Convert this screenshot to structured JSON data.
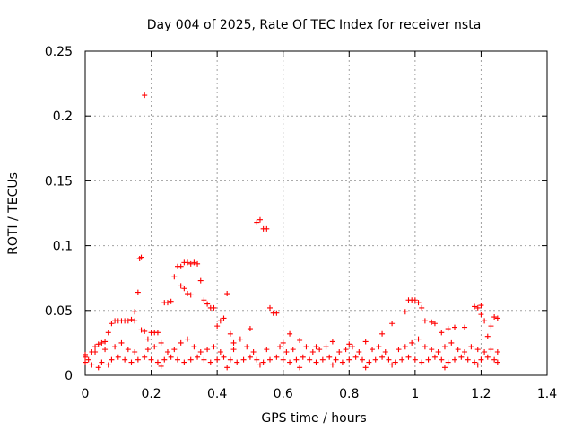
{
  "chart_data": {
    "type": "scatter",
    "title": "Day 004 of 2025, Rate Of TEC Index for receiver nsta",
    "xlabel": "GPS time / hours",
    "ylabel": "ROTI / TECUs",
    "xlim": [
      0,
      1.4
    ],
    "ylim": [
      0,
      0.25
    ],
    "xticks": [
      0,
      0.2,
      0.4,
      0.6,
      0.8,
      1,
      1.2,
      1.4
    ],
    "xtick_labels": [
      "0",
      "0.2",
      "0.4",
      "0.6",
      "0.8",
      "1",
      "1.2",
      "1.4"
    ],
    "yticks": [
      0,
      0.05,
      0.1,
      0.15,
      0.2,
      0.25
    ],
    "ytick_labels": [
      "0",
      "0.05",
      "0.1",
      "0.15",
      "0.2",
      "0.25"
    ],
    "grid": true,
    "marker": "+",
    "color": "#ff0000",
    "series": [
      {
        "name": "ROTI",
        "points": [
          [
            0.0,
            0.014
          ],
          [
            0.0,
            0.01
          ],
          [
            0.0,
            0.016
          ],
          [
            0.01,
            0.012
          ],
          [
            0.02,
            0.018
          ],
          [
            0.03,
            0.022
          ],
          [
            0.04,
            0.024
          ],
          [
            0.05,
            0.025
          ],
          [
            0.06,
            0.026
          ],
          [
            0.07,
            0.033
          ],
          [
            0.08,
            0.04
          ],
          [
            0.09,
            0.042
          ],
          [
            0.1,
            0.042
          ],
          [
            0.11,
            0.042
          ],
          [
            0.12,
            0.042
          ],
          [
            0.13,
            0.042
          ],
          [
            0.14,
            0.043
          ],
          [
            0.15,
            0.042
          ],
          [
            0.15,
            0.049
          ],
          [
            0.16,
            0.064
          ],
          [
            0.165,
            0.09
          ],
          [
            0.17,
            0.091
          ],
          [
            0.18,
            0.216
          ],
          [
            0.17,
            0.035
          ],
          [
            0.18,
            0.034
          ],
          [
            0.19,
            0.028
          ],
          [
            0.2,
            0.033
          ],
          [
            0.21,
            0.033
          ],
          [
            0.22,
            0.033
          ],
          [
            0.23,
            0.025
          ],
          [
            0.24,
            0.056
          ],
          [
            0.25,
            0.056
          ],
          [
            0.26,
            0.057
          ],
          [
            0.27,
            0.076
          ],
          [
            0.28,
            0.084
          ],
          [
            0.29,
            0.084
          ],
          [
            0.29,
            0.069
          ],
          [
            0.3,
            0.067
          ],
          [
            0.3,
            0.087
          ],
          [
            0.31,
            0.087
          ],
          [
            0.32,
            0.086
          ],
          [
            0.33,
            0.087
          ],
          [
            0.34,
            0.086
          ],
          [
            0.31,
            0.063
          ],
          [
            0.32,
            0.062
          ],
          [
            0.35,
            0.073
          ],
          [
            0.36,
            0.058
          ],
          [
            0.37,
            0.055
          ],
          [
            0.38,
            0.052
          ],
          [
            0.39,
            0.052
          ],
          [
            0.4,
            0.038
          ],
          [
            0.41,
            0.042
          ],
          [
            0.42,
            0.044
          ],
          [
            0.43,
            0.063
          ],
          [
            0.44,
            0.032
          ],
          [
            0.45,
            0.025
          ],
          [
            0.47,
            0.028
          ],
          [
            0.5,
            0.036
          ],
          [
            0.52,
            0.118
          ],
          [
            0.53,
            0.12
          ],
          [
            0.54,
            0.113
          ],
          [
            0.55,
            0.113
          ],
          [
            0.56,
            0.052
          ],
          [
            0.57,
            0.048
          ],
          [
            0.58,
            0.048
          ],
          [
            0.6,
            0.025
          ],
          [
            0.62,
            0.032
          ],
          [
            0.65,
            0.027
          ],
          [
            0.7,
            0.022
          ],
          [
            0.75,
            0.026
          ],
          [
            0.8,
            0.024
          ],
          [
            0.85,
            0.026
          ],
          [
            0.9,
            0.032
          ],
          [
            0.93,
            0.04
          ],
          [
            0.97,
            0.049
          ],
          [
            0.98,
            0.058
          ],
          [
            0.99,
            0.058
          ],
          [
            1.0,
            0.058
          ],
          [
            1.01,
            0.056
          ],
          [
            1.02,
            0.052
          ],
          [
            1.03,
            0.042
          ],
          [
            1.05,
            0.041
          ],
          [
            1.06,
            0.04
          ],
          [
            1.08,
            0.033
          ],
          [
            1.1,
            0.036
          ],
          [
            1.12,
            0.037
          ],
          [
            1.15,
            0.037
          ],
          [
            1.18,
            0.053
          ],
          [
            1.19,
            0.052
          ],
          [
            1.2,
            0.054
          ],
          [
            1.2,
            0.047
          ],
          [
            1.21,
            0.042
          ],
          [
            1.22,
            0.03
          ],
          [
            1.23,
            0.038
          ],
          [
            1.24,
            0.045
          ],
          [
            1.25,
            0.044
          ],
          [
            0.02,
            0.008
          ],
          [
            0.05,
            0.01
          ],
          [
            0.08,
            0.012
          ],
          [
            0.1,
            0.014
          ],
          [
            0.12,
            0.012
          ],
          [
            0.14,
            0.01
          ],
          [
            0.16,
            0.012
          ],
          [
            0.18,
            0.014
          ],
          [
            0.2,
            0.012
          ],
          [
            0.22,
            0.01
          ],
          [
            0.24,
            0.012
          ],
          [
            0.26,
            0.014
          ],
          [
            0.28,
            0.012
          ],
          [
            0.3,
            0.01
          ],
          [
            0.32,
            0.012
          ],
          [
            0.34,
            0.014
          ],
          [
            0.36,
            0.012
          ],
          [
            0.38,
            0.01
          ],
          [
            0.4,
            0.012
          ],
          [
            0.42,
            0.014
          ],
          [
            0.44,
            0.012
          ],
          [
            0.46,
            0.01
          ],
          [
            0.48,
            0.012
          ],
          [
            0.5,
            0.014
          ],
          [
            0.52,
            0.012
          ],
          [
            0.54,
            0.01
          ],
          [
            0.56,
            0.012
          ],
          [
            0.58,
            0.014
          ],
          [
            0.6,
            0.012
          ],
          [
            0.62,
            0.01
          ],
          [
            0.64,
            0.012
          ],
          [
            0.66,
            0.014
          ],
          [
            0.68,
            0.012
          ],
          [
            0.7,
            0.01
          ],
          [
            0.72,
            0.012
          ],
          [
            0.74,
            0.014
          ],
          [
            0.76,
            0.012
          ],
          [
            0.78,
            0.01
          ],
          [
            0.8,
            0.012
          ],
          [
            0.82,
            0.014
          ],
          [
            0.84,
            0.012
          ],
          [
            0.86,
            0.01
          ],
          [
            0.88,
            0.012
          ],
          [
            0.9,
            0.014
          ],
          [
            0.92,
            0.012
          ],
          [
            0.94,
            0.01
          ],
          [
            0.96,
            0.012
          ],
          [
            0.98,
            0.014
          ],
          [
            1.0,
            0.012
          ],
          [
            1.02,
            0.01
          ],
          [
            1.04,
            0.012
          ],
          [
            1.06,
            0.014
          ],
          [
            1.08,
            0.012
          ],
          [
            1.1,
            0.01
          ],
          [
            1.12,
            0.012
          ],
          [
            1.14,
            0.014
          ],
          [
            1.16,
            0.012
          ],
          [
            1.18,
            0.01
          ],
          [
            1.2,
            0.012
          ],
          [
            1.22,
            0.014
          ],
          [
            1.24,
            0.012
          ],
          [
            0.03,
            0.018
          ],
          [
            0.06,
            0.02
          ],
          [
            0.09,
            0.022
          ],
          [
            0.11,
            0.025
          ],
          [
            0.13,
            0.02
          ],
          [
            0.15,
            0.018
          ],
          [
            0.19,
            0.02
          ],
          [
            0.21,
            0.022
          ],
          [
            0.25,
            0.018
          ],
          [
            0.27,
            0.02
          ],
          [
            0.29,
            0.025
          ],
          [
            0.31,
            0.028
          ],
          [
            0.33,
            0.022
          ],
          [
            0.35,
            0.018
          ],
          [
            0.37,
            0.02
          ],
          [
            0.39,
            0.022
          ],
          [
            0.41,
            0.018
          ],
          [
            0.45,
            0.02
          ],
          [
            0.49,
            0.022
          ],
          [
            0.51,
            0.018
          ],
          [
            0.55,
            0.02
          ],
          [
            0.59,
            0.022
          ],
          [
            0.61,
            0.018
          ],
          [
            0.63,
            0.02
          ],
          [
            0.67,
            0.022
          ],
          [
            0.69,
            0.018
          ],
          [
            0.71,
            0.02
          ],
          [
            0.73,
            0.022
          ],
          [
            0.77,
            0.018
          ],
          [
            0.79,
            0.02
          ],
          [
            0.81,
            0.022
          ],
          [
            0.83,
            0.018
          ],
          [
            0.87,
            0.02
          ],
          [
            0.89,
            0.022
          ],
          [
            0.91,
            0.018
          ],
          [
            0.95,
            0.02
          ],
          [
            0.97,
            0.022
          ],
          [
            0.99,
            0.025
          ],
          [
            1.01,
            0.028
          ],
          [
            1.03,
            0.022
          ],
          [
            1.05,
            0.02
          ],
          [
            1.07,
            0.018
          ],
          [
            1.09,
            0.022
          ],
          [
            1.11,
            0.025
          ],
          [
            1.13,
            0.02
          ],
          [
            1.15,
            0.018
          ],
          [
            1.17,
            0.022
          ],
          [
            1.19,
            0.02
          ],
          [
            1.21,
            0.018
          ],
          [
            1.23,
            0.02
          ],
          [
            1.25,
            0.018
          ],
          [
            0.04,
            0.006
          ],
          [
            0.07,
            0.008
          ],
          [
            0.23,
            0.007
          ],
          [
            0.43,
            0.006
          ],
          [
            0.53,
            0.008
          ],
          [
            0.65,
            0.006
          ],
          [
            0.75,
            0.008
          ],
          [
            0.85,
            0.006
          ],
          [
            0.93,
            0.008
          ],
          [
            1.09,
            0.006
          ],
          [
            1.19,
            0.008
          ],
          [
            1.25,
            0.01
          ]
        ]
      }
    ]
  }
}
